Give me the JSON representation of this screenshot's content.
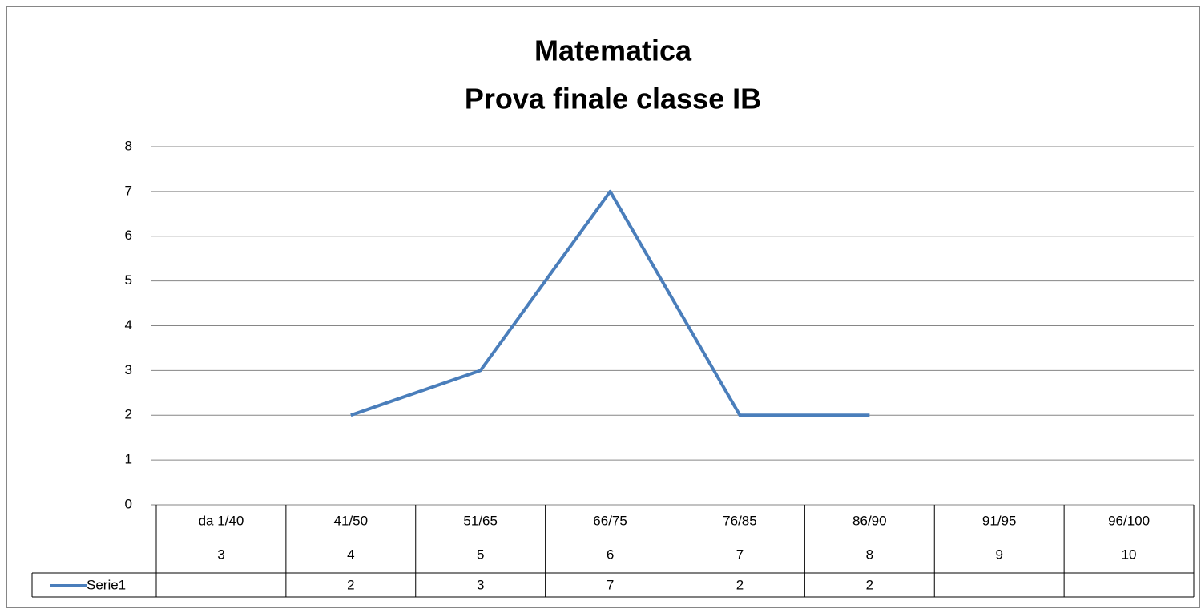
{
  "chart_data": {
    "type": "line",
    "title": [
      "Matematica",
      "Prova finale classe IB"
    ],
    "categories": [
      "da 1/40",
      "41/50",
      "51/65",
      "66/75",
      "76/85",
      "86/90",
      "91/95",
      "96/100"
    ],
    "subcategories": [
      "3",
      "4",
      "5",
      "6",
      "7",
      "8",
      "9",
      "10"
    ],
    "series": [
      {
        "name": "Serie1",
        "color": "#4a7ebb",
        "values": [
          null,
          2,
          3,
          7,
          2,
          2,
          null,
          null
        ]
      }
    ],
    "ylim": [
      0,
      8
    ],
    "yticks": [
      0,
      1,
      2,
      3,
      4,
      5,
      6,
      7,
      8
    ],
    "grid": true,
    "data_table": true
  }
}
